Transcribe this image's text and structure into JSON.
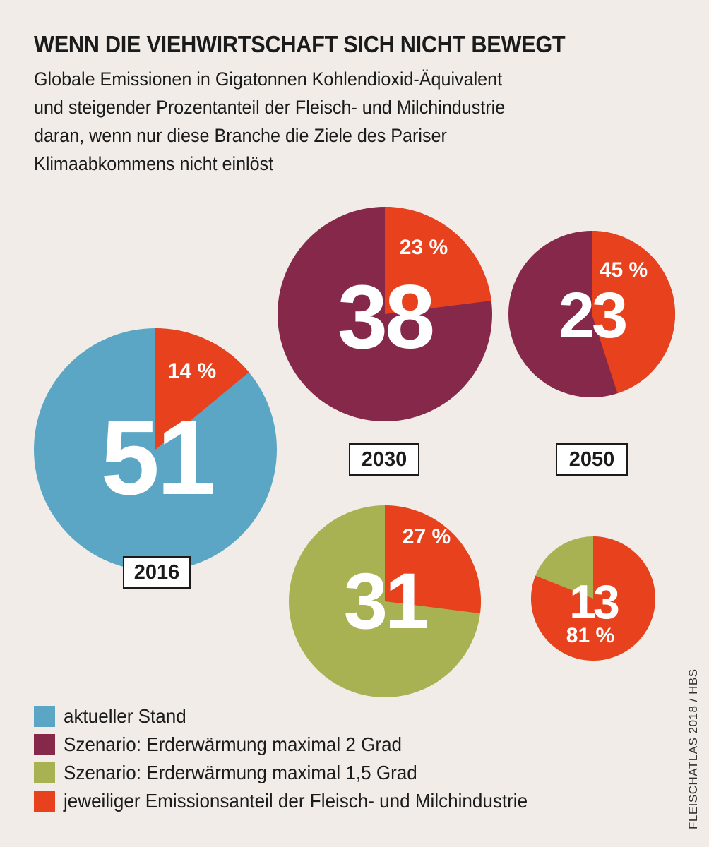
{
  "title": "WENN DIE VIEHWIRTSCHAFT SICH NICHT BEWEGT",
  "subtitle_lines": [
    "Globale Emissionen in Gigatonnen Kohlendioxid-Äquivalent",
    "und steigender Prozentanteil der Fleisch- und Milchindustrie",
    "daran, wenn nur diese Branche die Ziele des Pariser",
    "Klimaabkommens nicht einlöst"
  ],
  "colors": {
    "aktuell": "#5ba6c4",
    "szenario_2": "#86284a",
    "szenario_15": "#a9b252",
    "anteil": "#e8411d"
  },
  "chart_data": {
    "type": "pie",
    "unit": "Gigatonnen Kohlendioxid-Äquivalent",
    "charts": [
      {
        "id": "c2016",
        "year": "2016",
        "scenario": "aktuell",
        "total": 51,
        "total_label": "51",
        "share": 14,
        "share_label": "14 %"
      },
      {
        "id": "c2030a",
        "year": "2030",
        "scenario": "szenario_2",
        "total": 38,
        "total_label": "38",
        "share": 23,
        "share_label": "23 %"
      },
      {
        "id": "c2050a",
        "year": "2050",
        "scenario": "szenario_2",
        "total": 23,
        "total_label": "23",
        "share": 45,
        "share_label": "45 %"
      },
      {
        "id": "c2030b",
        "year": "",
        "scenario": "szenario_15",
        "total": 31,
        "total_label": "31",
        "share": 27,
        "share_label": "27 %"
      },
      {
        "id": "c2050b",
        "year": "",
        "scenario": "szenario_15",
        "total": 13,
        "total_label": "13",
        "share": 81,
        "share_label": "81 %"
      }
    ],
    "year_labels": [
      "2016",
      "2030",
      "2050"
    ]
  },
  "legend": [
    {
      "key": "aktuell",
      "label": "aktueller Stand"
    },
    {
      "key": "szenario_2",
      "label": "Szenario: Erderwärmung maximal 2 Grad"
    },
    {
      "key": "szenario_15",
      "label": "Szenario: Erderwärmung maximal 1,5 Grad"
    },
    {
      "key": "anteil",
      "label": "jeweiliger Emissionsanteil der Fleisch- und Milchindustrie"
    }
  ],
  "credit": "FLEISCHATLAS 2018 / HBS"
}
